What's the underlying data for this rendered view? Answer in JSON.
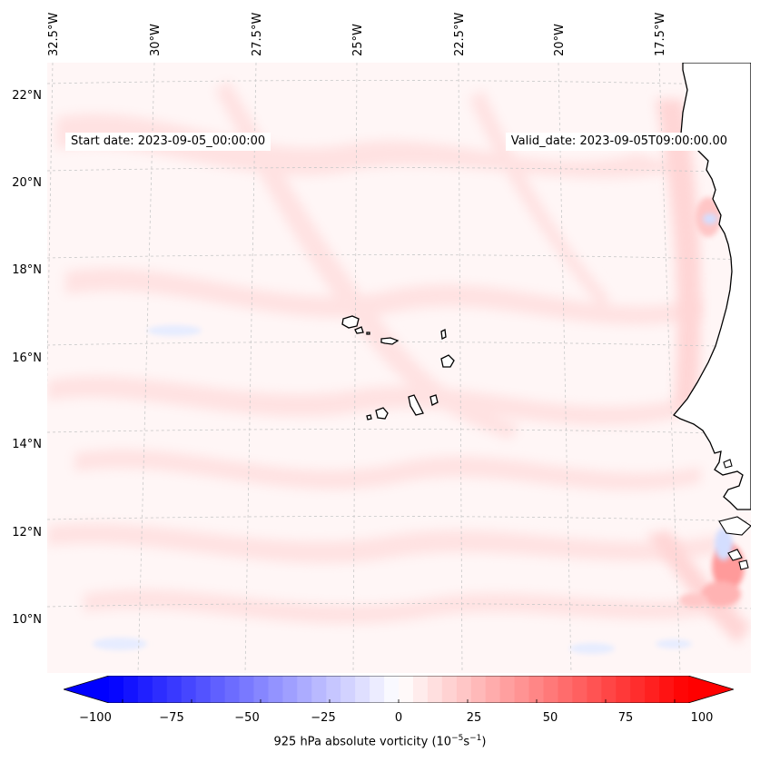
{
  "map": {
    "start_date": "Start date: 2023-09-05_00:00:00",
    "valid_date": "Valid_date: 2023-09-05T09:00:00.00",
    "lon_labels": [
      "32.5°W",
      "30°W",
      "27.5°W",
      "25°W",
      "22.5°W",
      "20°W",
      "17.5°W"
    ],
    "lat_labels": [
      "22°N",
      "20°N",
      "18°N",
      "16°N",
      "14°N",
      "12°N",
      "10°N"
    ],
    "land_color": "#ffffff",
    "coast_color": "#000000",
    "grid_color": "#c8c8c8"
  },
  "colorbar": {
    "label_main": "925 hPa absolute vorticity (10",
    "label_exp1": "−5",
    "label_mid": "s",
    "label_exp2": "−1",
    "label_end": ")",
    "ticks": [
      "−100",
      "−75",
      "−50",
      "−25",
      "0",
      "25",
      "50",
      "75",
      "100"
    ],
    "min": -100,
    "max": 100,
    "low_color": "#0000ff",
    "mid_color": "#ffffff",
    "high_color": "#ff0000"
  }
}
